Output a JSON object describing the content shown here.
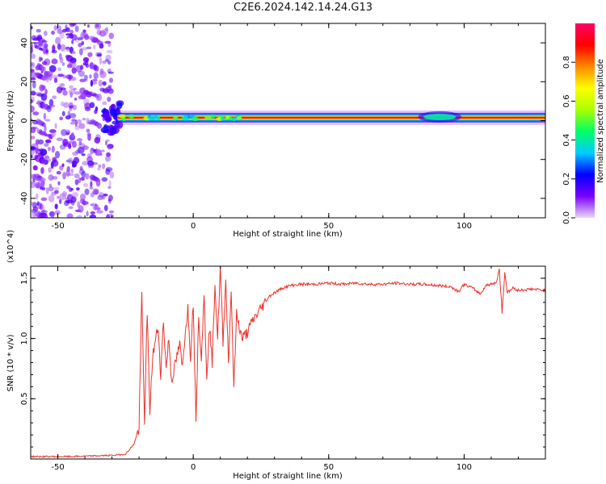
{
  "title": "C2E6.2024.142.14.24.G13",
  "chart_data": [
    {
      "type": "heatmap",
      "xlabel": "Height of straight line (km)",
      "ylabel": "Frequency (Hz)",
      "xlim": [
        -60,
        130
      ],
      "ylim": [
        -50,
        50
      ],
      "xticks": [
        -50,
        0,
        50,
        100
      ],
      "yticks": [
        -40,
        -20,
        0,
        20,
        40
      ],
      "colorbar": {
        "label": "Normalized spectral amplitude",
        "range": [
          0.0,
          1.0
        ],
        "ticks": [
          0.0,
          0.2,
          0.4,
          0.6,
          0.8
        ],
        "colormap": [
          "#e8d6f7",
          "#7a00ff",
          "#0000ff",
          "#00ccff",
          "#00ff66",
          "#aaff00",
          "#ffff00",
          "#ff8800",
          "#ff0000",
          "#ff0066"
        ]
      },
      "noise_region_x": [
        -60,
        -30
      ],
      "carrier": {
        "x_start": -28,
        "x_end": 130,
        "frequency_hz": 1.5,
        "peak_amplitude": 0.95
      }
    },
    {
      "type": "line",
      "xlabel": "Height of straight line (km)",
      "ylabel": "SNR (10 * v/v)",
      "y_multiplier": "(x10^4)",
      "xlim": [
        -60,
        130
      ],
      "ylim": [
        0,
        1.6
      ],
      "xticks": [
        -50,
        0,
        50,
        100
      ],
      "yticks": [
        0.5,
        1.0,
        1.5
      ],
      "color": "#e8322c",
      "series": [
        {
          "x": [
            -60,
            -45,
            -30,
            -25,
            -22,
            -20,
            -19,
            -18,
            -17,
            -16,
            -15,
            -13,
            -12,
            -11,
            -10,
            -9,
            -8,
            -6,
            -5,
            -4,
            -3,
            -2,
            -1,
            0,
            1,
            2,
            3,
            4,
            5,
            6,
            7,
            8,
            9,
            10,
            11,
            12,
            13,
            14,
            15,
            16,
            18,
            20,
            22,
            25,
            28,
            30,
            33,
            36,
            40,
            45,
            50,
            55,
            60,
            65,
            70,
            75,
            80,
            85,
            90,
            95,
            98,
            100,
            103,
            106,
            108,
            110,
            112,
            113,
            114,
            115,
            116,
            118,
            120,
            125,
            130
          ],
          "y": [
            0.02,
            0.02,
            0.03,
            0.04,
            0.12,
            0.25,
            1.38,
            0.3,
            1.2,
            0.4,
            0.85,
            1.1,
            0.7,
            1.15,
            0.75,
            1.0,
            0.65,
            0.85,
            0.95,
            0.75,
            1.05,
            1.25,
            0.85,
            1.3,
            0.33,
            1.2,
            0.85,
            1.35,
            0.7,
            1.1,
            0.8,
            1.45,
            1.0,
            1.6,
            0.95,
            1.5,
            0.8,
            1.4,
            0.6,
            1.2,
            1.0,
            1.05,
            1.15,
            1.25,
            1.35,
            1.38,
            1.42,
            1.44,
            1.45,
            1.45,
            1.46,
            1.45,
            1.46,
            1.45,
            1.45,
            1.46,
            1.45,
            1.45,
            1.44,
            1.43,
            1.39,
            1.45,
            1.42,
            1.37,
            1.44,
            1.45,
            1.47,
            1.58,
            1.2,
            1.55,
            1.38,
            1.42,
            1.4,
            1.41,
            1.4
          ]
        }
      ]
    }
  ]
}
